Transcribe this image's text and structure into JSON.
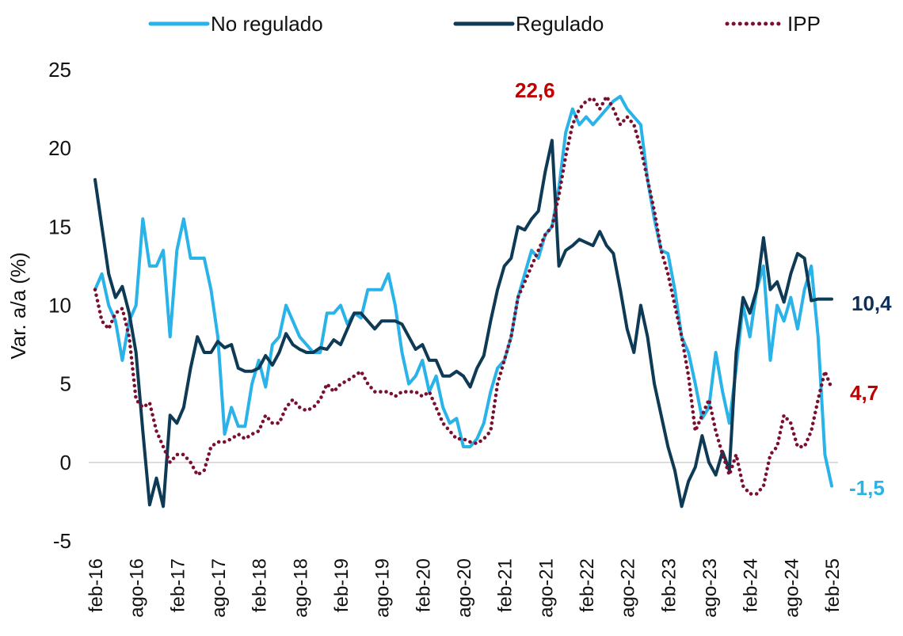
{
  "chart_data": {
    "type": "line",
    "y_label": "Var. a/a (%)",
    "categories": [
      "feb-16",
      null,
      null,
      null,
      null,
      null,
      "ago-16",
      null,
      null,
      null,
      null,
      null,
      "feb-17",
      null,
      null,
      null,
      null,
      null,
      "ago-17",
      null,
      null,
      null,
      null,
      null,
      "feb-18",
      null,
      null,
      null,
      null,
      null,
      "ago-18",
      null,
      null,
      null,
      null,
      null,
      "feb-19",
      null,
      null,
      null,
      null,
      null,
      "ago-19",
      null,
      null,
      null,
      null,
      null,
      "feb-20",
      null,
      null,
      null,
      null,
      null,
      "ago-20",
      null,
      null,
      null,
      null,
      null,
      "feb-21",
      null,
      null,
      null,
      null,
      null,
      "ago-21",
      null,
      null,
      null,
      null,
      null,
      "feb-22",
      null,
      null,
      null,
      null,
      null,
      "ago-22",
      null,
      null,
      null,
      null,
      null,
      "feb-23",
      null,
      null,
      null,
      null,
      null,
      "ago-23",
      null,
      null,
      null,
      null,
      null,
      "feb-24",
      null,
      null,
      null,
      null,
      null,
      "ago-24",
      null,
      null,
      null,
      null,
      null,
      "feb-25"
    ],
    "series": [
      {
        "name": "No regulado",
        "color": "#29b3e8",
        "style": "solid",
        "values": [
          11,
          12,
          10,
          9,
          6.5,
          9,
          10,
          15.5,
          12.5,
          12.5,
          13.5,
          8,
          13.5,
          15.5,
          13,
          13,
          13,
          11,
          8,
          1.8,
          3.5,
          2.3,
          2.3,
          5,
          6.5,
          4.8,
          7.5,
          8,
          10,
          9,
          8,
          7.5,
          7,
          7,
          9.5,
          9.5,
          10,
          8.8,
          9.5,
          9.2,
          11,
          11,
          11,
          12,
          10,
          7,
          5,
          5.5,
          6.5,
          4.5,
          5.5,
          3.5,
          2.5,
          2.8,
          1,
          1,
          1.5,
          2.5,
          4.5,
          6,
          6.5,
          8,
          10.5,
          12,
          13.5,
          13,
          14.5,
          15,
          17.5,
          21,
          22.5,
          21.5,
          22,
          21.5,
          22,
          22.5,
          23,
          23.3,
          22.5,
          22,
          21.5,
          18,
          15.5,
          13.5,
          13.3,
          11,
          8,
          7,
          5,
          2.8,
          3.5,
          7,
          4.5,
          2.5,
          6,
          10,
          8,
          11,
          12.5,
          6.5,
          10,
          9,
          10.5,
          8.5,
          11,
          12.5,
          8,
          0.5,
          -1.5
        ]
      },
      {
        "name": "Regulado",
        "color": "#0e3a55",
        "style": "solid",
        "values": [
          18,
          15,
          12,
          10.5,
          11.2,
          9.5,
          7,
          2,
          -2.7,
          -1,
          -2.8,
          3,
          2.5,
          3.5,
          6,
          8,
          7,
          7,
          7.7,
          7.3,
          7.5,
          6,
          5.8,
          5.8,
          6,
          6.8,
          6.2,
          7,
          8.2,
          7.5,
          7.2,
          7,
          7,
          7.3,
          7.2,
          7.8,
          7.5,
          8.5,
          9.5,
          9.5,
          9,
          8.5,
          9,
          9,
          9,
          8.8,
          8,
          7.2,
          7.5,
          6.5,
          6.5,
          5.5,
          5.5,
          5.8,
          5.5,
          4.8,
          6,
          6.8,
          9,
          11,
          12.5,
          13,
          15,
          14.8,
          15.5,
          16,
          18.5,
          20.5,
          12.5,
          13.5,
          13.8,
          14.2,
          14,
          13.8,
          14.7,
          13.8,
          13.3,
          11,
          8.5,
          7,
          10,
          8,
          5,
          3,
          1,
          -0.5,
          -2.8,
          -1.2,
          -0.3,
          1.7,
          0,
          -0.8,
          0.7,
          -0.5,
          7,
          10.5,
          9.5,
          11,
          14.3,
          11,
          11.5,
          10.2,
          12,
          13.3,
          13,
          10.3,
          10.4,
          10.4,
          10.4
        ]
      },
      {
        "name": "IPP",
        "color": "#7a1030",
        "style": "dotted",
        "values": [
          11,
          9,
          8.5,
          9.5,
          9.8,
          8,
          4,
          3.5,
          3.8,
          2,
          1,
          0,
          0.5,
          0.5,
          0,
          -0.8,
          -0.5,
          1,
          1.3,
          1.3,
          1.5,
          1.8,
          1.5,
          1.8,
          2,
          3,
          2.5,
          2.5,
          3.5,
          4,
          3.5,
          3.3,
          3.5,
          4,
          5,
          4.5,
          5,
          5.2,
          5.5,
          5.8,
          5,
          4.5,
          4.5,
          4.5,
          4.2,
          4.5,
          4.5,
          4.5,
          4.2,
          4.5,
          3.5,
          2.5,
          2,
          1.5,
          1.5,
          1.3,
          1.2,
          1.5,
          2,
          5,
          6.5,
          8,
          10.5,
          11.5,
          12.5,
          13.5,
          14.5,
          15,
          17,
          19.5,
          21.5,
          22.5,
          23,
          23.2,
          22.5,
          23.3,
          22.5,
          21.5,
          22,
          21.5,
          20,
          18,
          16,
          13.5,
          12,
          10,
          8,
          5.5,
          2,
          3,
          4,
          2,
          0.5,
          -0.8,
          0.5,
          -1.5,
          -2,
          -2,
          -1.5,
          0.5,
          1,
          3,
          2.5,
          1,
          1,
          2,
          4,
          5.8,
          4.7
        ]
      }
    ],
    "annotations": [
      {
        "text": "22,6",
        "color": "#c00000"
      },
      {
        "text": "10,4",
        "color": "#0e2f5a"
      },
      {
        "text": "4,7",
        "color": "#c00000"
      },
      {
        "text": "-1,5",
        "color": "#29b3e8"
      }
    ],
    "ylim": [
      -5,
      25
    ],
    "yticks": [
      -5,
      0,
      5,
      10,
      15,
      20,
      25
    ]
  }
}
